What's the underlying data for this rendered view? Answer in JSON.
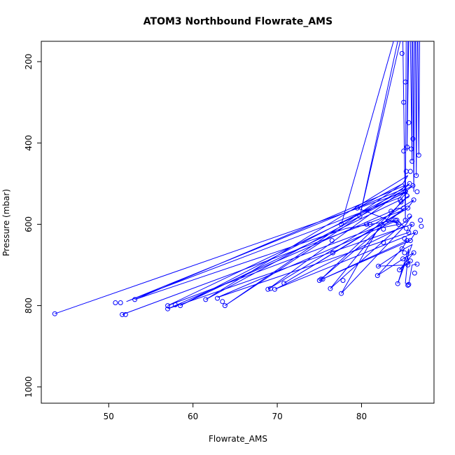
{
  "chart_data": {
    "type": "line",
    "title": "ATOM3 Northbound Flowrate_AMS",
    "xlabel": "Flowrate_AMS",
    "ylabel": "Pressure (mbar)",
    "xlim": [
      42.0,
      88.6
    ],
    "ylim": [
      1040,
      150
    ],
    "y_reversed": true,
    "x_ticks": [
      50,
      60,
      70,
      80
    ],
    "y_ticks": [
      200,
      400,
      600,
      800,
      1000
    ],
    "line_color": "#0000ff",
    "grid": false,
    "series": [
      {
        "values": [
          [
            43.6,
            820
          ],
          [
            85.2,
            520
          ],
          [
            84.5,
            535
          ],
          [
            52.1,
            790
          ],
          [
            84.8,
            515
          ],
          [
            85.1,
            505
          ],
          [
            53.1,
            785
          ],
          [
            78.2,
            610
          ],
          [
            84.0,
            590
          ],
          [
            57.0,
            800
          ],
          [
            85.4,
            520
          ],
          [
            84.6,
            540
          ],
          [
            58.5,
            800
          ],
          [
            86.1,
            505
          ],
          [
            85.2,
            520
          ],
          [
            61.5,
            785
          ],
          [
            85.5,
            480
          ],
          [
            84.9,
            500
          ],
          [
            63.8,
            800
          ],
          [
            85.7,
            500
          ],
          [
            85.0,
            515
          ],
          [
            68.9,
            760
          ],
          [
            86.2,
            540
          ],
          [
            85.5,
            560
          ],
          [
            70.8,
            745
          ],
          [
            84.2,
            575
          ],
          [
            85.1,
            560
          ],
          [
            75.2,
            735
          ],
          [
            85.6,
            530
          ],
          [
            84.7,
            545
          ],
          [
            76.3,
            758
          ],
          [
            85.9,
            580
          ],
          [
            85.3,
            600
          ],
          [
            77.6,
            770
          ],
          [
            82.0,
            610
          ],
          [
            84.5,
            600
          ],
          [
            79.5,
            560
          ],
          [
            84.9,
            500
          ],
          [
            85.5,
            520
          ]
        ]
      },
      {
        "values": [
          [
            51.6,
            822
          ],
          [
            85.0,
            565
          ],
          [
            84.4,
            560
          ],
          [
            57.0,
            808
          ],
          [
            86.0,
            600
          ],
          [
            85.6,
            620
          ],
          [
            62.9,
            780
          ],
          [
            84.3,
            590
          ],
          [
            85.0,
            605
          ],
          [
            69.7,
            760
          ],
          [
            86.4,
            620
          ],
          [
            85.8,
            640
          ],
          [
            75.0,
            738
          ],
          [
            85.4,
            640
          ],
          [
            84.8,
            660
          ],
          [
            81.9,
            726
          ],
          [
            85.3,
            680
          ],
          [
            86.2,
            670
          ],
          [
            84.5,
            712
          ],
          [
            85.8,
            690
          ],
          [
            85.5,
            700
          ],
          [
            82.0,
            703
          ],
          [
            85.1,
            660
          ],
          [
            86.0,
            650
          ],
          [
            84.3,
            746
          ],
          [
            85.6,
            660
          ],
          [
            85.2,
            745
          ],
          [
            85.6,
            748
          ],
          [
            86.0,
            700
          ],
          [
            86.6,
            698
          ]
        ]
      },
      {
        "values": [
          [
            77.6,
            600
          ],
          [
            83.8,
            150
          ],
          [
            84.3,
            150
          ],
          [
            79.8,
            580
          ],
          [
            84.6,
            150
          ],
          [
            84.9,
            150
          ],
          [
            85.2,
            590
          ],
          [
            85.3,
            150
          ],
          [
            85.5,
            150
          ],
          [
            85.4,
            420
          ],
          [
            85.6,
            150
          ],
          [
            85.8,
            150
          ],
          [
            86.0,
            445
          ],
          [
            86.0,
            150
          ],
          [
            86.1,
            150
          ],
          [
            86.2,
            520
          ],
          [
            86.3,
            150
          ],
          [
            86.4,
            150
          ],
          [
            86.5,
            480
          ],
          [
            86.6,
            150
          ],
          [
            86.7,
            150
          ],
          [
            86.8,
            430
          ],
          [
            86.9,
            150
          ]
        ]
      }
    ],
    "points": [
      [
        43.6,
        820
      ],
      [
        50.8,
        793
      ],
      [
        51.4,
        793
      ],
      [
        51.6,
        822
      ],
      [
        52.0,
        822
      ],
      [
        53.1,
        785
      ],
      [
        57.0,
        800
      ],
      [
        57.0,
        808
      ],
      [
        57.9,
        798
      ],
      [
        58.5,
        800
      ],
      [
        61.5,
        785
      ],
      [
        62.9,
        782
      ],
      [
        63.5,
        790
      ],
      [
        63.8,
        800
      ],
      [
        68.9,
        760
      ],
      [
        69.2,
        758
      ],
      [
        69.7,
        760
      ],
      [
        70.8,
        745
      ],
      [
        75.0,
        738
      ],
      [
        75.2,
        735
      ],
      [
        75.4,
        735
      ],
      [
        76.3,
        758
      ],
      [
        76.5,
        640
      ],
      [
        76.6,
        670
      ],
      [
        77.6,
        600
      ],
      [
        77.6,
        770
      ],
      [
        77.8,
        738
      ],
      [
        79.5,
        560
      ],
      [
        79.8,
        580
      ],
      [
        80.6,
        600
      ],
      [
        81.0,
        600
      ],
      [
        81.9,
        726
      ],
      [
        82.0,
        703
      ],
      [
        82.6,
        645
      ],
      [
        82.6,
        612
      ],
      [
        83.5,
        568
      ],
      [
        84.0,
        590
      ],
      [
        84.2,
        590
      ],
      [
        84.3,
        746
      ],
      [
        84.5,
        712
      ],
      [
        84.6,
        540
      ],
      [
        84.7,
        545
      ],
      [
        84.8,
        660
      ],
      [
        84.8,
        180
      ],
      [
        84.9,
        685
      ],
      [
        85.0,
        560
      ],
      [
        85.0,
        420
      ],
      [
        85.1,
        635
      ],
      [
        85.1,
        670
      ],
      [
        85.2,
        590
      ],
      [
        85.2,
        520
      ],
      [
        85.3,
        470
      ],
      [
        85.4,
        640
      ],
      [
        85.4,
        410
      ],
      [
        85.5,
        700
      ],
      [
        85.5,
        560
      ],
      [
        85.5,
        750
      ],
      [
        85.6,
        620
      ],
      [
        85.6,
        748
      ],
      [
        85.7,
        500
      ],
      [
        85.8,
        640
      ],
      [
        85.8,
        690
      ],
      [
        86.0,
        445
      ],
      [
        86.0,
        600
      ],
      [
        86.1,
        505
      ],
      [
        86.2,
        670
      ],
      [
        86.2,
        540
      ],
      [
        86.4,
        620
      ],
      [
        86.5,
        480
      ],
      [
        86.6,
        698
      ],
      [
        86.6,
        520
      ],
      [
        86.8,
        430
      ],
      [
        87.0,
        590
      ],
      [
        87.1,
        605
      ],
      [
        86.3,
        720
      ],
      [
        85.9,
        415
      ],
      [
        85.3,
        610
      ],
      [
        85.7,
        580
      ],
      [
        84.4,
        600
      ],
      [
        85.0,
        300
      ],
      [
        85.6,
        350
      ],
      [
        85.2,
        250
      ],
      [
        86.1,
        390
      ],
      [
        85.8,
        470
      ],
      [
        85.4,
        530
      ]
    ]
  }
}
